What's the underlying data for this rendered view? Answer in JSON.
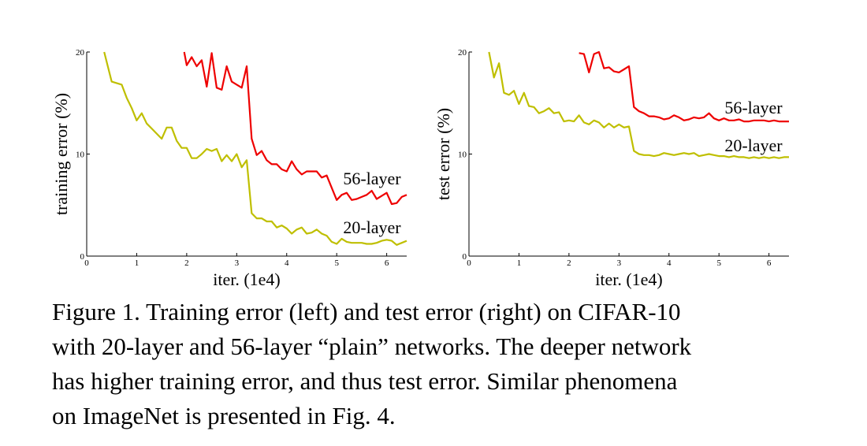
{
  "caption": "Figure 1. Training error (left) and test error (right) on CIFAR-10\nwith 20-layer and 56-layer “plain” networks. The deeper network\nhas higher training error, and thus test error.  Similar phenomena\non ImageNet is presented in Fig. 4.",
  "chart_data": [
    {
      "type": "line",
      "xlabel": "iter. (1e4)",
      "ylabel": "training error (%)",
      "xlim": [
        0,
        6.4
      ],
      "ylim": [
        0,
        20
      ],
      "xticks": [
        "0",
        "1",
        "2",
        "3",
        "4",
        "5",
        "6"
      ],
      "yticks": [
        "0",
        "10",
        "20"
      ],
      "grid": false,
      "series": [
        {
          "name": "56-layer",
          "color": "#ee0000",
          "x": [
            1.95,
            2.0,
            2.1,
            2.2,
            2.3,
            2.4,
            2.5,
            2.6,
            2.7,
            2.8,
            2.9,
            3.0,
            3.1,
            3.2,
            3.3,
            3.4,
            3.5,
            3.6,
            3.7,
            3.8,
            3.9,
            4.0,
            4.1,
            4.2,
            4.3,
            4.4,
            4.5,
            4.6,
            4.7,
            4.8,
            4.9,
            5.0,
            5.1,
            5.2,
            5.3,
            5.4,
            5.5,
            5.6,
            5.7,
            5.8,
            5.9,
            6.0,
            6.1,
            6.2,
            6.3,
            6.4
          ],
          "y": [
            20,
            18.7,
            19.5,
            18.6,
            19.2,
            16.6,
            19.9,
            16.5,
            16.3,
            18.6,
            17.1,
            16.8,
            16.5,
            18.6,
            11.5,
            9.9,
            10.3,
            9.4,
            9.0,
            9.0,
            8.5,
            8.3,
            9.3,
            8.5,
            8.0,
            8.3,
            8.3,
            8.3,
            7.7,
            7.9,
            6.7,
            5.5,
            6.0,
            6.2,
            5.5,
            5.6,
            5.8,
            6.0,
            6.4,
            5.6,
            5.9,
            6.2,
            5.1,
            5.2,
            5.8,
            6.0
          ]
        },
        {
          "name": "20-layer",
          "color": "#bfbf00",
          "x": [
            0.35,
            0.5,
            0.7,
            0.8,
            0.9,
            1.0,
            1.1,
            1.2,
            1.3,
            1.4,
            1.5,
            1.6,
            1.7,
            1.8,
            1.9,
            2.0,
            2.1,
            2.2,
            2.3,
            2.4,
            2.5,
            2.6,
            2.7,
            2.8,
            2.9,
            3.0,
            3.1,
            3.2,
            3.3,
            3.4,
            3.5,
            3.6,
            3.7,
            3.8,
            3.9,
            4.0,
            4.1,
            4.2,
            4.3,
            4.4,
            4.5,
            4.6,
            4.7,
            4.8,
            4.9,
            5.0,
            5.1,
            5.2,
            5.3,
            5.4,
            5.5,
            5.6,
            5.7,
            5.8,
            5.9,
            6.0,
            6.1,
            6.2,
            6.3,
            6.4
          ],
          "y": [
            20,
            17.1,
            16.8,
            15.5,
            14.5,
            13.3,
            14.0,
            13.0,
            12.5,
            12.0,
            11.5,
            12.6,
            12.6,
            11.3,
            10.6,
            10.6,
            9.6,
            9.6,
            10.0,
            10.5,
            10.3,
            10.5,
            9.3,
            9.9,
            9.3,
            10.0,
            8.7,
            9.4,
            4.2,
            3.7,
            3.7,
            3.4,
            3.4,
            2.8,
            3.0,
            2.7,
            2.2,
            2.6,
            2.8,
            2.2,
            2.3,
            2.6,
            2.2,
            2.0,
            1.4,
            1.2,
            1.7,
            1.4,
            1.3,
            1.3,
            1.3,
            1.2,
            1.2,
            1.3,
            1.5,
            1.6,
            1.5,
            1.1,
            1.3,
            1.5
          ]
        }
      ]
    },
    {
      "type": "line",
      "xlabel": "iter. (1e4)",
      "ylabel": "test error (%)",
      "xlim": [
        0,
        6.4
      ],
      "ylim": [
        0,
        20
      ],
      "xticks": [
        "0",
        "1",
        "2",
        "3",
        "4",
        "5",
        "6"
      ],
      "yticks": [
        "0",
        "10",
        "20"
      ],
      "grid": false,
      "series": [
        {
          "name": "56-layer",
          "color": "#ee0000",
          "x": [
            2.2,
            2.3,
            2.4,
            2.5,
            2.6,
            2.7,
            2.8,
            2.9,
            3.0,
            3.1,
            3.2,
            3.3,
            3.4,
            3.5,
            3.6,
            3.7,
            3.8,
            3.9,
            4.0,
            4.1,
            4.2,
            4.3,
            4.4,
            4.5,
            4.6,
            4.7,
            4.8,
            4.9,
            5.0,
            5.1,
            5.2,
            5.3,
            5.4,
            5.5,
            5.6,
            5.7,
            5.8,
            5.9,
            6.0,
            6.1,
            6.2,
            6.3,
            6.4
          ],
          "y": [
            19.9,
            19.8,
            18.0,
            19.8,
            20.0,
            18.4,
            18.5,
            18.1,
            18.0,
            18.3,
            18.6,
            14.6,
            14.2,
            14.0,
            13.7,
            13.7,
            13.6,
            13.4,
            13.5,
            13.8,
            13.6,
            13.3,
            13.4,
            13.6,
            13.5,
            13.6,
            14.0,
            13.5,
            13.3,
            13.5,
            13.3,
            13.3,
            13.4,
            13.2,
            13.2,
            13.3,
            13.3,
            13.3,
            13.2,
            13.3,
            13.2,
            13.2,
            13.2
          ]
        },
        {
          "name": "20-layer",
          "color": "#bfbf00",
          "x": [
            0.4,
            0.5,
            0.6,
            0.7,
            0.8,
            0.9,
            1.0,
            1.1,
            1.2,
            1.3,
            1.4,
            1.5,
            1.6,
            1.7,
            1.8,
            1.9,
            2.0,
            2.1,
            2.2,
            2.3,
            2.4,
            2.5,
            2.6,
            2.7,
            2.8,
            2.9,
            3.0,
            3.1,
            3.2,
            3.3,
            3.4,
            3.5,
            3.6,
            3.7,
            3.8,
            3.9,
            4.0,
            4.1,
            4.2,
            4.3,
            4.4,
            4.5,
            4.6,
            4.7,
            4.8,
            4.9,
            5.0,
            5.1,
            5.2,
            5.3,
            5.4,
            5.5,
            5.6,
            5.7,
            5.8,
            5.9,
            6.0,
            6.1,
            6.2,
            6.3,
            6.4
          ],
          "y": [
            20,
            17.5,
            18.9,
            16.0,
            15.8,
            16.2,
            14.9,
            16.0,
            14.7,
            14.6,
            14.0,
            14.2,
            14.5,
            14.0,
            14.1,
            13.2,
            13.3,
            13.2,
            13.8,
            13.1,
            12.9,
            13.3,
            13.1,
            12.6,
            13.0,
            12.6,
            12.9,
            12.6,
            12.7,
            10.3,
            10.0,
            9.9,
            9.9,
            9.8,
            9.9,
            10.1,
            10.0,
            9.9,
            10.0,
            10.1,
            10.0,
            10.1,
            9.8,
            9.9,
            10.0,
            9.9,
            9.8,
            9.8,
            9.7,
            9.8,
            9.7,
            9.7,
            9.6,
            9.7,
            9.6,
            9.7,
            9.6,
            9.7,
            9.6,
            9.7,
            9.7
          ]
        }
      ]
    }
  ]
}
